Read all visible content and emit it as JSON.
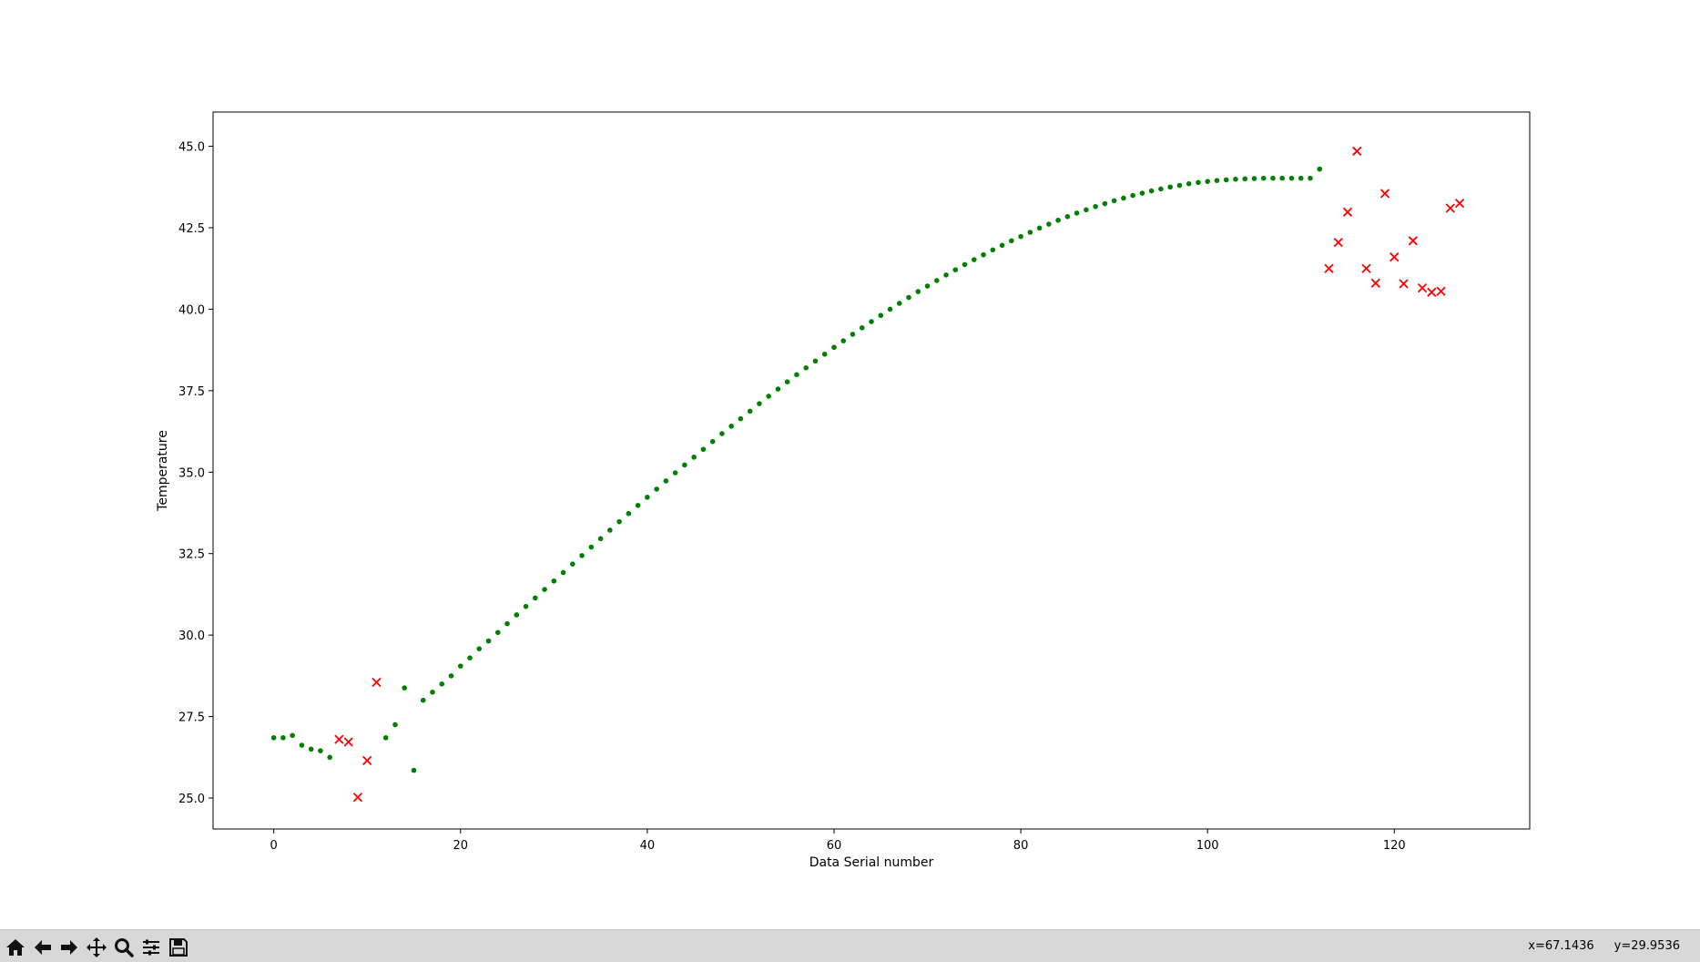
{
  "window": {
    "toolbar": {
      "buttons": [
        {
          "name": "home-icon"
        },
        {
          "name": "back-arrow-icon"
        },
        {
          "name": "forward-arrow-icon"
        },
        {
          "name": "pan-icon"
        },
        {
          "name": "zoom-icon"
        },
        {
          "name": "configure-subplots-icon"
        },
        {
          "name": "save-icon"
        }
      ],
      "coord_x": "x=67.1436",
      "coord_y": "y=29.9536"
    }
  },
  "chart_data": {
    "type": "scatter",
    "title": "",
    "xlabel": "Data Serial number",
    "ylabel": "Temperature",
    "xlim": [
      -6.5,
      134.5
    ],
    "ylim": [
      24.05,
      46.05
    ],
    "xticks": [
      0,
      20,
      40,
      60,
      80,
      100,
      120
    ],
    "yticks": [
      25.0,
      27.5,
      30.0,
      32.5,
      35.0,
      37.5,
      40.0,
      42.5,
      45.0
    ],
    "ytick_labels": [
      "25.0",
      "27.5",
      "30.0",
      "32.5",
      "35.0",
      "37.5",
      "40.0",
      "42.5",
      "45.0"
    ],
    "grid": false,
    "legend": "none",
    "series": [
      {
        "marker": "dot",
        "color": "#008000",
        "x": [
          0,
          1,
          2,
          3,
          4,
          5,
          6,
          12,
          13,
          14,
          15,
          16,
          17,
          18,
          19,
          20,
          21,
          22,
          23,
          24,
          25,
          26,
          27,
          28,
          29,
          30,
          31,
          32,
          33,
          34,
          35,
          36,
          37,
          38,
          39,
          40,
          41,
          42,
          43,
          44,
          45,
          46,
          47,
          48,
          49,
          50,
          51,
          52,
          53,
          54,
          55,
          56,
          57,
          58,
          59,
          60,
          61,
          62,
          63,
          64,
          65,
          66,
          67,
          68,
          69,
          70,
          71,
          72,
          73,
          74,
          75,
          76,
          77,
          78,
          79,
          80,
          81,
          82,
          83,
          84,
          85,
          86,
          87,
          88,
          89,
          90,
          91,
          92,
          93,
          94,
          95,
          96,
          97,
          98,
          99,
          100,
          101,
          102,
          103,
          104,
          105,
          106,
          107,
          108,
          109,
          110,
          111,
          112
        ],
        "y": [
          26.85,
          26.85,
          26.92,
          26.62,
          26.5,
          26.45,
          26.25,
          26.85,
          27.25,
          28.38,
          25.85,
          28.0,
          28.25,
          28.5,
          28.75,
          29.05,
          29.3,
          29.58,
          29.82,
          30.08,
          30.35,
          30.62,
          30.88,
          31.14,
          31.4,
          31.66,
          31.92,
          32.18,
          32.44,
          32.7,
          32.96,
          33.22,
          33.48,
          33.73,
          33.98,
          34.23,
          34.48,
          34.73,
          34.98,
          35.22,
          35.46,
          35.7,
          35.94,
          36.18,
          36.41,
          36.64,
          36.87,
          37.1,
          37.33,
          37.55,
          37.77,
          37.99,
          38.2,
          38.41,
          38.62,
          38.83,
          39.03,
          39.23,
          39.43,
          39.62,
          39.81,
          40.0,
          40.18,
          40.36,
          40.54,
          40.71,
          40.88,
          41.05,
          41.21,
          41.37,
          41.52,
          41.67,
          41.82,
          41.96,
          42.1,
          42.23,
          42.36,
          42.49,
          42.61,
          42.73,
          42.84,
          42.95,
          43.05,
          43.15,
          43.24,
          43.33,
          43.41,
          43.49,
          43.56,
          43.63,
          43.69,
          43.75,
          43.8,
          43.85,
          43.89,
          43.92,
          43.95,
          43.97,
          43.99,
          44.0,
          44.01,
          44.02,
          44.02,
          44.02,
          44.02,
          44.02,
          44.02,
          44.3
        ]
      },
      {
        "marker": "x",
        "color": "#ff0000",
        "x": [
          7,
          8,
          9,
          10,
          11,
          113,
          114,
          115,
          116,
          117,
          118,
          119,
          120,
          121,
          122,
          123,
          124,
          125,
          126,
          127
        ],
        "y": [
          26.8,
          26.72,
          25.02,
          26.15,
          28.55,
          41.25,
          42.05,
          42.98,
          44.85,
          41.25,
          40.8,
          43.55,
          41.6,
          40.78,
          42.1,
          40.65,
          40.52,
          40.55,
          43.1,
          43.25
        ]
      }
    ]
  }
}
